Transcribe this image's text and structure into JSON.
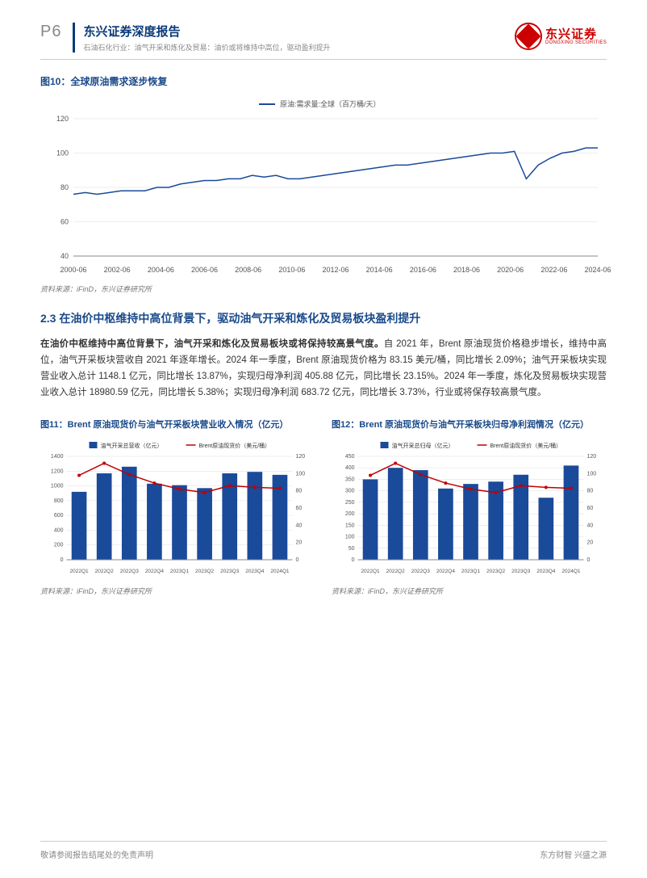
{
  "header": {
    "page_num": "P6",
    "title": "东兴证券深度报告",
    "subtitle": "石油石化行业：油气开采和炼化及贸易：油价或将维持中高位，驱动盈利提升",
    "logo_cn": "东兴证券",
    "logo_en": "DONGXING SECURITIES",
    "logo_color": "#c00000",
    "accent_color": "#0a3a7a"
  },
  "chart10": {
    "title": "图10：全球原油需求逐步恢复",
    "type": "line",
    "legend": "原油:需求量:全球（百万桶/天）",
    "line_color": "#1a4a9a",
    "background_color": "#ffffff",
    "grid_color": "#dddddd",
    "x_labels": [
      "2000-06",
      "2002-06",
      "2004-06",
      "2006-06",
      "2008-06",
      "2010-06",
      "2012-06",
      "2014-06",
      "2016-06",
      "2018-06",
      "2020-06",
      "2022-06",
      "2024-06"
    ],
    "ylim": [
      40,
      120
    ],
    "ytick_step": 20,
    "yticks": [
      40,
      60,
      80,
      100,
      120
    ],
    "label_fontsize": 9,
    "line_width": 1.5,
    "data": [
      76,
      77,
      76,
      77,
      78,
      78,
      78,
      80,
      80,
      82,
      83,
      84,
      84,
      85,
      85,
      87,
      86,
      87,
      85,
      85,
      86,
      87,
      88,
      89,
      90,
      91,
      92,
      93,
      93,
      94,
      95,
      96,
      97,
      98,
      99,
      100,
      100,
      101,
      85,
      93,
      97,
      100,
      101,
      103,
      103
    ]
  },
  "chart10_source": "资料来源：iFinD，东兴证券研究所",
  "section_heading": "2.3 在油价中枢维持中高位背景下，驱动油气开采和炼化及贸易板块盈利提升",
  "body": "在油价中枢维持中高位背景下，油气开采和炼化及贸易板块或将保持较高景气度。自 2021 年，Brent 原油现货价格稳步增长，维持中高位，油气开采板块营收自 2021 年逐年增长。2024 年一季度，Brent 原油现货价格为 83.15 美元/桶，同比增长 2.09%；油气开采板块实现营业收入总计 1148.1 亿元，同比增长 13.87%，实现归母净利润 405.88 亿元，同比增长 23.15%。2024 年一季度，炼化及贸易板块实现营业收入总计 18980.59 亿元，同比增长 5.38%；实现归母净利润 683.72 亿元，同比增长 3.73%，行业或将保存较高景气度。",
  "chart11": {
    "title": "图11：Brent 原油现货价与油气开采板块营业收入情况（亿元）",
    "type": "bar+line",
    "legend_bar": "油气开采总营收（亿元）",
    "legend_line": "Brent原油现货价（美元/桶）",
    "bar_color": "#1a4a9a",
    "line_color": "#c00000",
    "categories": [
      "2022Q1",
      "2022Q2",
      "2022Q3",
      "2022Q4",
      "2023Q1",
      "2023Q2",
      "2023Q3",
      "2023Q4",
      "2024Q1"
    ],
    "bar_values": [
      920,
      1170,
      1260,
      1030,
      1010,
      970,
      1170,
      1190,
      1150
    ],
    "line_values": [
      98,
      112,
      99,
      89,
      82,
      78,
      86,
      84,
      83
    ],
    "y1_lim": [
      0,
      1400
    ],
    "y1_ticks": [
      0,
      200,
      400,
      600,
      800,
      1000,
      1200,
      1400
    ],
    "y2_lim": [
      0,
      120
    ],
    "y2_ticks": [
      0,
      20,
      40,
      60,
      80,
      100,
      120
    ],
    "bar_width": 0.6,
    "label_fontsize": 7
  },
  "chart12": {
    "title": "图12：Brent 原油现货价与油气开采板块归母净利润情况（亿元）",
    "type": "bar+line",
    "legend_bar": "油气开采总归母（亿元）",
    "legend_line": "Brent原油现货价（美元/桶）",
    "bar_color": "#1a4a9a",
    "line_color": "#c00000",
    "categories": [
      "2022Q1",
      "2022Q2",
      "2022Q3",
      "2022Q4",
      "2023Q1",
      "2023Q2",
      "2023Q3",
      "2023Q4",
      "2024Q1"
    ],
    "bar_values": [
      350,
      400,
      390,
      310,
      330,
      340,
      370,
      270,
      410
    ],
    "line_values": [
      98,
      112,
      99,
      89,
      82,
      78,
      86,
      84,
      83
    ],
    "y1_lim": [
      0,
      450
    ],
    "y1_ticks": [
      0,
      50,
      100,
      150,
      200,
      250,
      300,
      350,
      400,
      450
    ],
    "y2_lim": [
      0,
      120
    ],
    "y2_ticks": [
      0,
      20,
      40,
      60,
      80,
      100,
      120
    ],
    "bar_width": 0.6,
    "label_fontsize": 7
  },
  "charts_source": "资料来源：iFinD，东兴证券研究所",
  "footer": {
    "left": "敬请参阅报告结尾处的免责声明",
    "right": "东方财智 兴盛之源"
  }
}
